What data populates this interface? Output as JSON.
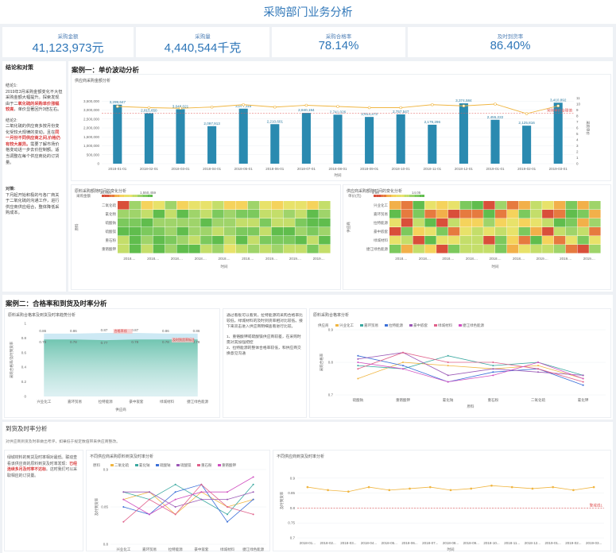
{
  "header": {
    "title": "采购部门业务分析"
  },
  "kpis": [
    {
      "label": "采购金额",
      "value": "41,123,973元"
    },
    {
      "label": "采购量",
      "value": "4,440,544千克"
    },
    {
      "label": "采购合格率",
      "value": "78.14%"
    },
    {
      "label": "及时到货率",
      "value": "86.40%"
    }
  ],
  "sidebar": {
    "title": "结论和对策",
    "c1_head": "结论1:",
    "c1_a": "2019年3月采购金额变化不大但采购金额大幅提升。探索发现由于二",
    "c1_b": "氧化硫的采购单价涨幅较高",
    "c1_c": "，单价显著回升3倍左右。",
    "c2_head": "结论2:",
    "c2_a": "二氧化硫的供应商多按月份变化受较大规律的变动。且在",
    "c2_b": "同一月份不同供应商之间,价格仍有较大差异。",
    "c2_c": "需要了解市场价格变动进一步去价控制额。适当调整在每个供应商处的订货量。",
    "c3_head": "对策:",
    "c3_a": "下月起开始积极的与各厂商关于二氧化硫的沟通工作，进行供应商供应组合，整体降低采购成本。"
  },
  "case1": {
    "title": "案例一：单价波动分析",
    "chart_title": "供应商采购金额分析",
    "x_label": "时间",
    "y_right_label": "采购单价",
    "threshold_label": "采购单价合理值",
    "heat1_title": "原料采购额随时间的变化分析",
    "heat1_legend_label": "采购金额",
    "heat1_min": "30,665",
    "heat1_max": "1,550,459",
    "heat1_xlabel": "时间",
    "heat1_ylabel": "原料",
    "heat1_rows": [
      "二氧化硫",
      "氰化物",
      "硫酸钠",
      "硫酸镁",
      "重石粉",
      "重铬酸钾"
    ],
    "heat2_title": "供应商采购额随时间的变化分析",
    "heat2_legend_label": "单价(元)",
    "heat2_min": "4.86",
    "heat2_max": "14.05",
    "heat2_xlabel": "时间",
    "heat2_ylabel": "供应商",
    "heat2_rows": [
      "兴业化工",
      "嘉环贸易",
      "拉特能源",
      "豪中嵌套",
      "绿城材料",
      "捷江绿色能源"
    ],
    "heat_xticks": [
      "2018....",
      "2018....",
      "2018....",
      "2018....",
      "2018....",
      "2018....",
      "2019....",
      "2019....",
      "2019...."
    ]
  },
  "case2": {
    "title": "案例二：合格率和到货及时率分析",
    "area_title": "原料采购合格率及到货及时率趋势分析",
    "area_ylabel": "采购合格率/及时到货率",
    "area_xlabel": "供应商",
    "area_threshold1": "合格率线",
    "area_threshold2": "及时到货率标注",
    "note_a": "通过看板可以看到，拉特能源的采购合格率比较低，绿城材料的及时到货率相对比较低。接下来双击进入供应商明细查看进行比较。",
    "note_b": "1、重铬酸钾或硫酸镁供应商较差，在采购时需对其加强把控",
    "note_c": "2、拉特能源的整体合格率较低，和供应商交换意见沟通",
    "multi_title": "原料采购合格率分析",
    "multi_legend_label": "供应商",
    "multi_ylabel": "采购合格率",
    "multi_xlabel": "原料"
  },
  "case3": {
    "title": "到货及时率分析",
    "subtitle": "对供应商到货及时率做出考评，如果低于规定数值带来供应商整改。",
    "note_a": "绿城材料的到货及时率相对最低。联动查看该供应商的原料到货及时率发现：",
    "note_b": "已经连续多月及时率不达标",
    "note_c": "。这时我们可以采取相应的订货量。",
    "left_title": "不同供应商采购原料到货及时率分析",
    "left_legend_label": "原料",
    "left_ylabel": "及时到货率",
    "right_title": "不同供应商到货及时率分析",
    "right_ylabel": "及时到货率",
    "right_xlabel": "时间",
    "right_threshold": "警戒线1"
  },
  "chart_data": [
    {
      "type": "bar",
      "title": "供应商采购金额分析",
      "xlabel": "时间",
      "ylabel": "采购金额",
      "y2label": "采购单价",
      "ylim": [
        0,
        4000000
      ],
      "categories": [
        "2018-01-01",
        "2018-02-01",
        "2018-03-01",
        "2018-04-01",
        "2018-05-01",
        "2018-06-01",
        "2018-07-01",
        "2018-08-01",
        "2018-09-01",
        "2018-10-01",
        "2018-11-01",
        "2018-12-01",
        "2019-01-01",
        "2019-02-01",
        "2019-03-01"
      ],
      "x_ticks": [
        "2018-01-01",
        "2018-02-01",
        "2018-03-01",
        "2018-04-01",
        "2018-05-01",
        "2018-06-01",
        "2018-07-01",
        "2018-08-01",
        "2018-09-01",
        "2018-10-01",
        "2018-11-01",
        "2018-12-01",
        "2019-01-01",
        "2019-02-01",
        "2019-03-01"
      ],
      "values": [
        3299647,
        2815650,
        3048021,
        2097913,
        3077115,
        2210601,
        2840194,
        2741026,
        2613373,
        2757547,
        2179296,
        3374584,
        2455222,
        2125816,
        3410892
      ],
      "value_labels": [
        "3,299,647",
        "2,815,650",
        "3,048,021",
        "2,097,913",
        "3,077,115",
        "2,210,601",
        "2,840,194",
        "2,741,026",
        "2,613,373",
        "2,757,547",
        "2,179,296",
        "3,374,584",
        "2,455,222",
        "2,125,816",
        "3,410,892"
      ],
      "y_ticks": [
        "0",
        "500,000",
        "1,000,000",
        "1,500,000",
        "2,000,000",
        "2,500,000",
        "3,000,000",
        "3,500,000"
      ],
      "line_values": [
        9.6,
        9.4,
        9.3,
        9.5,
        9.9,
        9.5,
        9.8,
        9.6,
        9.4,
        9.4,
        9.9,
        9.7,
        10,
        8.4,
        9.7
      ],
      "y2lim": [
        0,
        12
      ],
      "y2_ticks": [
        "0",
        "1",
        "2",
        "3",
        "4",
        "5",
        "6",
        "7",
        "8",
        "9",
        "10",
        "11"
      ],
      "threshold": 8.5
    },
    {
      "type": "bar",
      "title": "原料采购合格率及到货及时率趋势分析",
      "categories": [
        "兴业化工",
        "嘉环贸易",
        "拉特能源",
        "豪中嵌套",
        "绿城材料",
        "捷江绿色能源"
      ],
      "x_ticks": [
        "兴业化工",
        "嘉环贸易",
        "拉特能源",
        "豪中嵌套",
        "绿城材料",
        "捷江绿色能源"
      ],
      "series": [
        {
          "name": "及时到货率",
          "values": [
            0.86,
            0.86,
            0.87,
            0.87,
            0.86,
            0.86
          ],
          "labels": [
            "0.86",
            "0.86",
            "0.87",
            "0.87",
            "0.86",
            "0.86"
          ]
        },
        {
          "name": "采购合格率",
          "values": [
            0.78,
            0.78,
            0.77,
            0.78,
            0.78,
            0.78
          ],
          "labels": [
            "0.78",
            "0.78",
            "0.77",
            "0.78",
            "0.78",
            "0.78"
          ]
        }
      ],
      "ylim": [
        0,
        1
      ],
      "y_ticks": [
        "0",
        "0.2",
        "0.4",
        "0.6",
        "0.8",
        "1"
      ]
    },
    {
      "type": "line",
      "title": "原料采购合格率分析",
      "categories": [
        "硫酸钠",
        "重铬酸钾",
        "氰化钠",
        "重石粉",
        "二氧化硫",
        "氰化钾"
      ],
      "x_ticks": [
        "硫酸钠",
        "重铬酸钾",
        "氰化钠",
        "重石粉",
        "二氧化硫",
        "氰化钾"
      ],
      "ylim": [
        0.7,
        0.9
      ],
      "y_ticks": [
        "0.7",
        "0.8",
        "0.9"
      ],
      "series": [
        {
          "name": "兴业化工",
          "values": [
            0.75,
            0.8,
            0.79,
            0.78,
            0.79,
            0.75
          ]
        },
        {
          "name": "嘉环贸易",
          "values": [
            0.79,
            0.78,
            0.82,
            0.79,
            0.8,
            0.76
          ]
        },
        {
          "name": "拉特能源",
          "values": [
            0.82,
            0.79,
            0.74,
            0.77,
            0.78,
            0.73
          ]
        },
        {
          "name": "豪中嵌套",
          "values": [
            0.81,
            0.83,
            0.76,
            0.78,
            0.77,
            0.76
          ]
        },
        {
          "name": "绿城材料",
          "values": [
            0.78,
            0.83,
            0.8,
            0.8,
            0.78,
            0.74
          ]
        },
        {
          "name": "捷江绿色能源",
          "values": [
            0.8,
            0.78,
            0.74,
            0.76,
            0.8,
            0.75
          ]
        }
      ]
    },
    {
      "type": "line",
      "title": "不同供应商采购原料到货及时率分析",
      "categories": [
        "兴业化工",
        "嘉环贸易",
        "拉特能源",
        "豪中嵌套",
        "绿城材料",
        "捷江绿色能源"
      ],
      "x_ticks": [
        "兴业化工",
        "嘉环贸易",
        "拉特能源",
        "豪中嵌套",
        "绿城材料",
        "捷江绿色能源"
      ],
      "ylim": [
        0.8,
        0.9
      ],
      "y_ticks": [
        "0.8",
        "0.85",
        "0.9"
      ],
      "series": [
        {
          "name": "二氧化硫",
          "values": [
            0.86,
            0.87,
            0.84,
            0.87,
            0.85,
            0.86
          ]
        },
        {
          "name": "氰化钠",
          "values": [
            0.87,
            0.86,
            0.88,
            0.86,
            0.84,
            0.88
          ]
        },
        {
          "name": "硫酸钠",
          "values": [
            0.85,
            0.84,
            0.87,
            0.88,
            0.83,
            0.86
          ]
        },
        {
          "name": "硫酸镁",
          "values": [
            0.87,
            0.87,
            0.85,
            0.86,
            0.86,
            0.87
          ]
        },
        {
          "name": "重石粉",
          "values": [
            0.83,
            0.86,
            0.84,
            0.88,
            0.85,
            0.84
          ]
        },
        {
          "name": "重铬酸钾",
          "values": [
            0.86,
            0.84,
            0.86,
            0.87,
            0.87,
            0.89
          ]
        }
      ]
    },
    {
      "type": "line",
      "title": "不同供应商到货及时率分析",
      "categories": [
        "2018-01",
        "2018-02",
        "2018-03",
        "2018-04",
        "2018-05",
        "2018-06",
        "2018-07",
        "2018-08",
        "2018-09",
        "2018-10",
        "2018-11",
        "2018-12",
        "2019-01",
        "2019-02",
        "2019-03"
      ],
      "x_ticks": [
        "2018-01...",
        "2018-02...",
        "2018-03...",
        "2018-04...",
        "2018-05...",
        "2018-06...",
        "2018-07...",
        "2018-08...",
        "2018-09...",
        "2018-10...",
        "2018-11...",
        "2018-12...",
        "2019-01...",
        "2019-02...",
        "2019-03..."
      ],
      "ylim": [
        0.7,
        0.95
      ],
      "y_ticks": [
        "0.7",
        "0.75",
        "0.8",
        "0.85",
        "0.9"
      ],
      "series": [
        {
          "name": "及时到货率",
          "values": [
            0.87,
            0.86,
            0.855,
            0.87,
            0.86,
            0.865,
            0.87,
            0.86,
            0.865,
            0.875,
            0.87,
            0.865,
            0.87,
            0.86,
            0.87
          ]
        }
      ],
      "threshold": 0.8
    }
  ],
  "colors": {
    "title": "#2e76b8",
    "bar": "#2a8ab0",
    "line": "#f0b642",
    "threshold": "#e05a5a",
    "teal": "#6cc3ad"
  }
}
